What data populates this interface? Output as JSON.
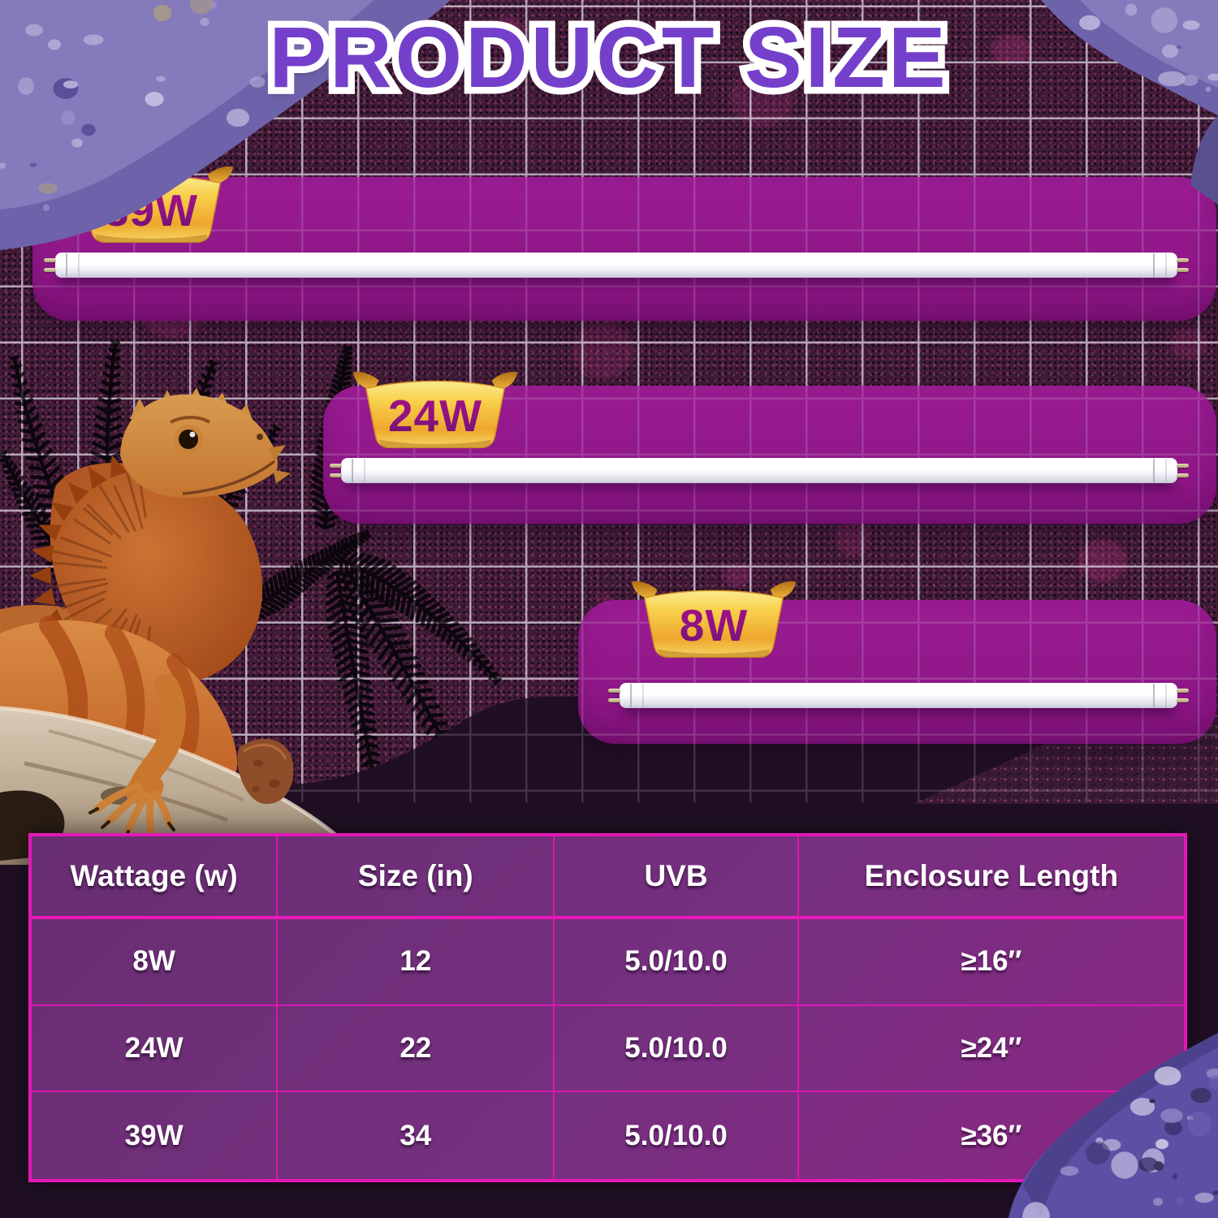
{
  "title": "PRODUCT SIZE",
  "badges": [
    {
      "label": "39W"
    },
    {
      "label": "24W"
    },
    {
      "label": "8W"
    }
  ],
  "table": {
    "headers": [
      "Wattage (w)",
      "Size (in)",
      "UVB",
      "Enclosure Length"
    ],
    "rows": [
      [
        "8W",
        "12",
        "5.0/10.0",
        "≥16″"
      ],
      [
        "24W",
        "22",
        "5.0/10.0",
        "≥24″"
      ],
      [
        "39W",
        "34",
        "5.0/10.0",
        "≥36″"
      ]
    ]
  },
  "colors": {
    "panel_magenta": "#93198B",
    "badge_gold": "#F6CE45",
    "badge_text_purple": "#8C1283",
    "title_purple": "#7440CB",
    "table_border_pink": "#E318B6",
    "background_maroon": "#3E1C36",
    "dark_band": "#200F24"
  }
}
